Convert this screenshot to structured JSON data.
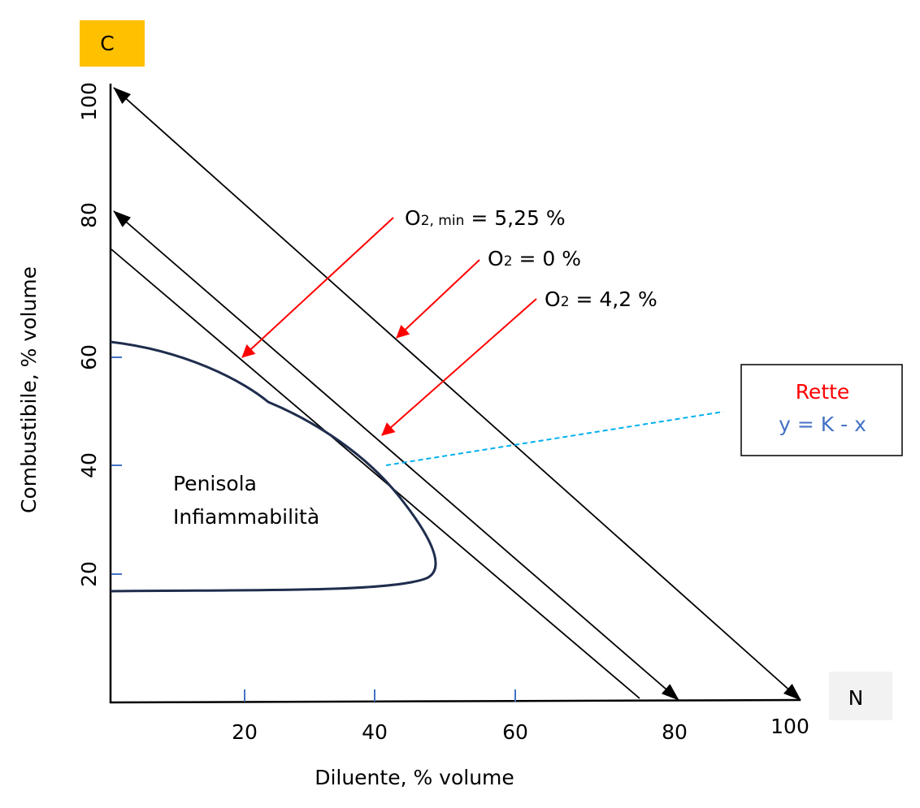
{
  "chart_data": {
    "type": "ternary-section-diagram",
    "corner_labels": {
      "top": "C",
      "right": "N"
    },
    "xlabel": "Diluente, % volume",
    "ylabel": "Combustibile, % volume",
    "x_ticks": [
      "20",
      "40",
      "60",
      "80",
      "100"
    ],
    "y_ticks": [
      "20",
      "40",
      "60",
      "80",
      "100"
    ],
    "lines": [
      {
        "K": 100,
        "label": "O2 = 0 %",
        "label_main": "O",
        "label_sub": "2",
        "label_rest": " = 0 %",
        "arrows": true
      },
      {
        "K": 80,
        "label": "O2 = 4,2 %",
        "label_main": "O",
        "label_sub": "2",
        "label_rest": " = 4,2 %",
        "arrows": true
      },
      {
        "K": 75,
        "label": "O2, min = 5,25 %",
        "label_main": "O",
        "label_sub": "2, min",
        "label_rest": " = 5,25 %",
        "arrows": false
      }
    ],
    "region_label": [
      "Penisola",
      "Infiammabilità"
    ],
    "legend_box": {
      "title": "Rette",
      "formula": "y = K - x"
    },
    "colors": {
      "corner_c": "#FFC000",
      "corner_n": "#F2F2F2",
      "curve": "#1F2D4D",
      "pointer": "#FF0000",
      "dashed": "#00B0F0",
      "formula": "#4472C4",
      "title": "#FF0000"
    }
  }
}
